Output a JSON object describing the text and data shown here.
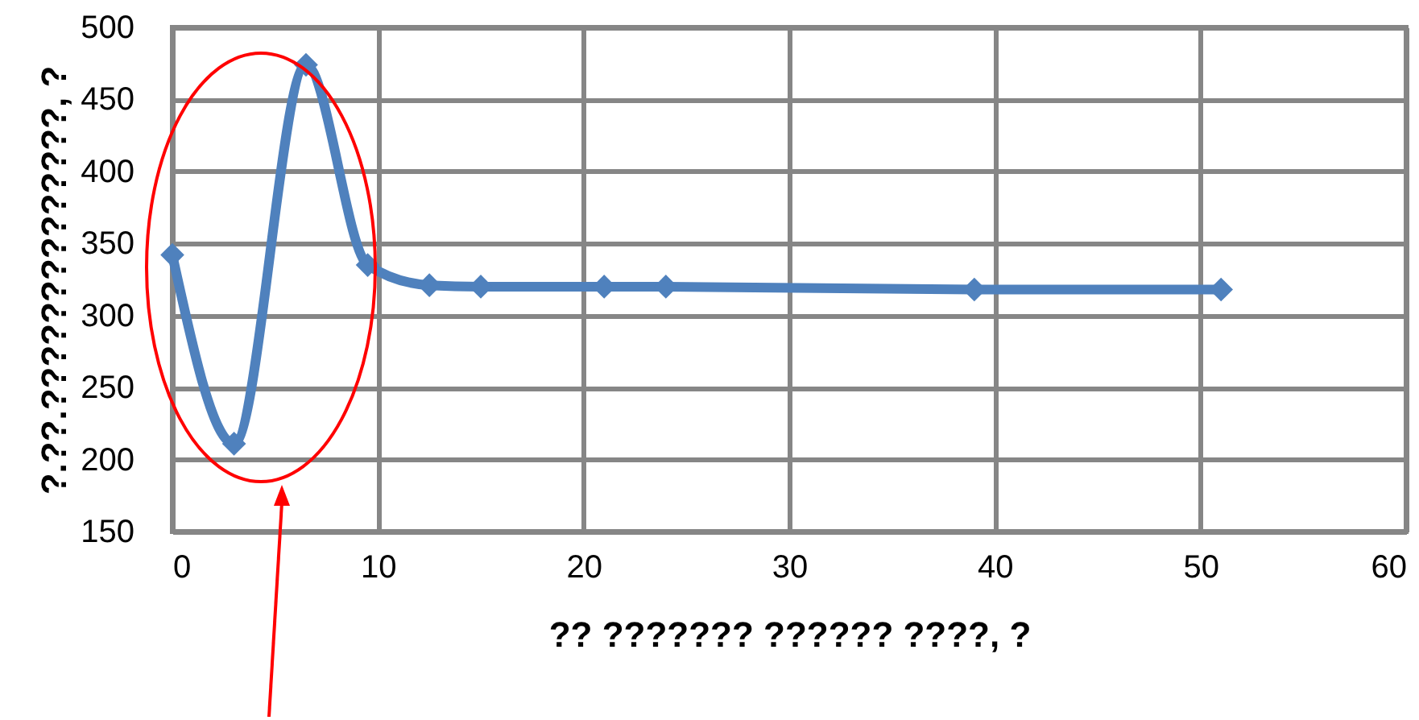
{
  "chart_data": {
    "type": "line",
    "xlabel": "?? ??????? ?????? ????, ?",
    "ylabel": "?.??.??????????????, ?",
    "x": [
      0,
      3,
      6.5,
      9.5,
      12.5,
      15,
      21,
      24,
      39,
      51
    ],
    "values": [
      342,
      211,
      474,
      335,
      321,
      320,
      320,
      320,
      318,
      318
    ],
    "color": "#4f81bd",
    "marker": "diamond",
    "line_style": "solid",
    "xlim": [
      0,
      60
    ],
    "xticks": [
      0,
      10,
      20,
      30,
      40,
      50,
      60
    ],
    "ylim": [
      150,
      500
    ],
    "yticks": [
      150,
      200,
      250,
      300,
      350,
      400,
      450,
      500
    ],
    "grid": true
  }
}
